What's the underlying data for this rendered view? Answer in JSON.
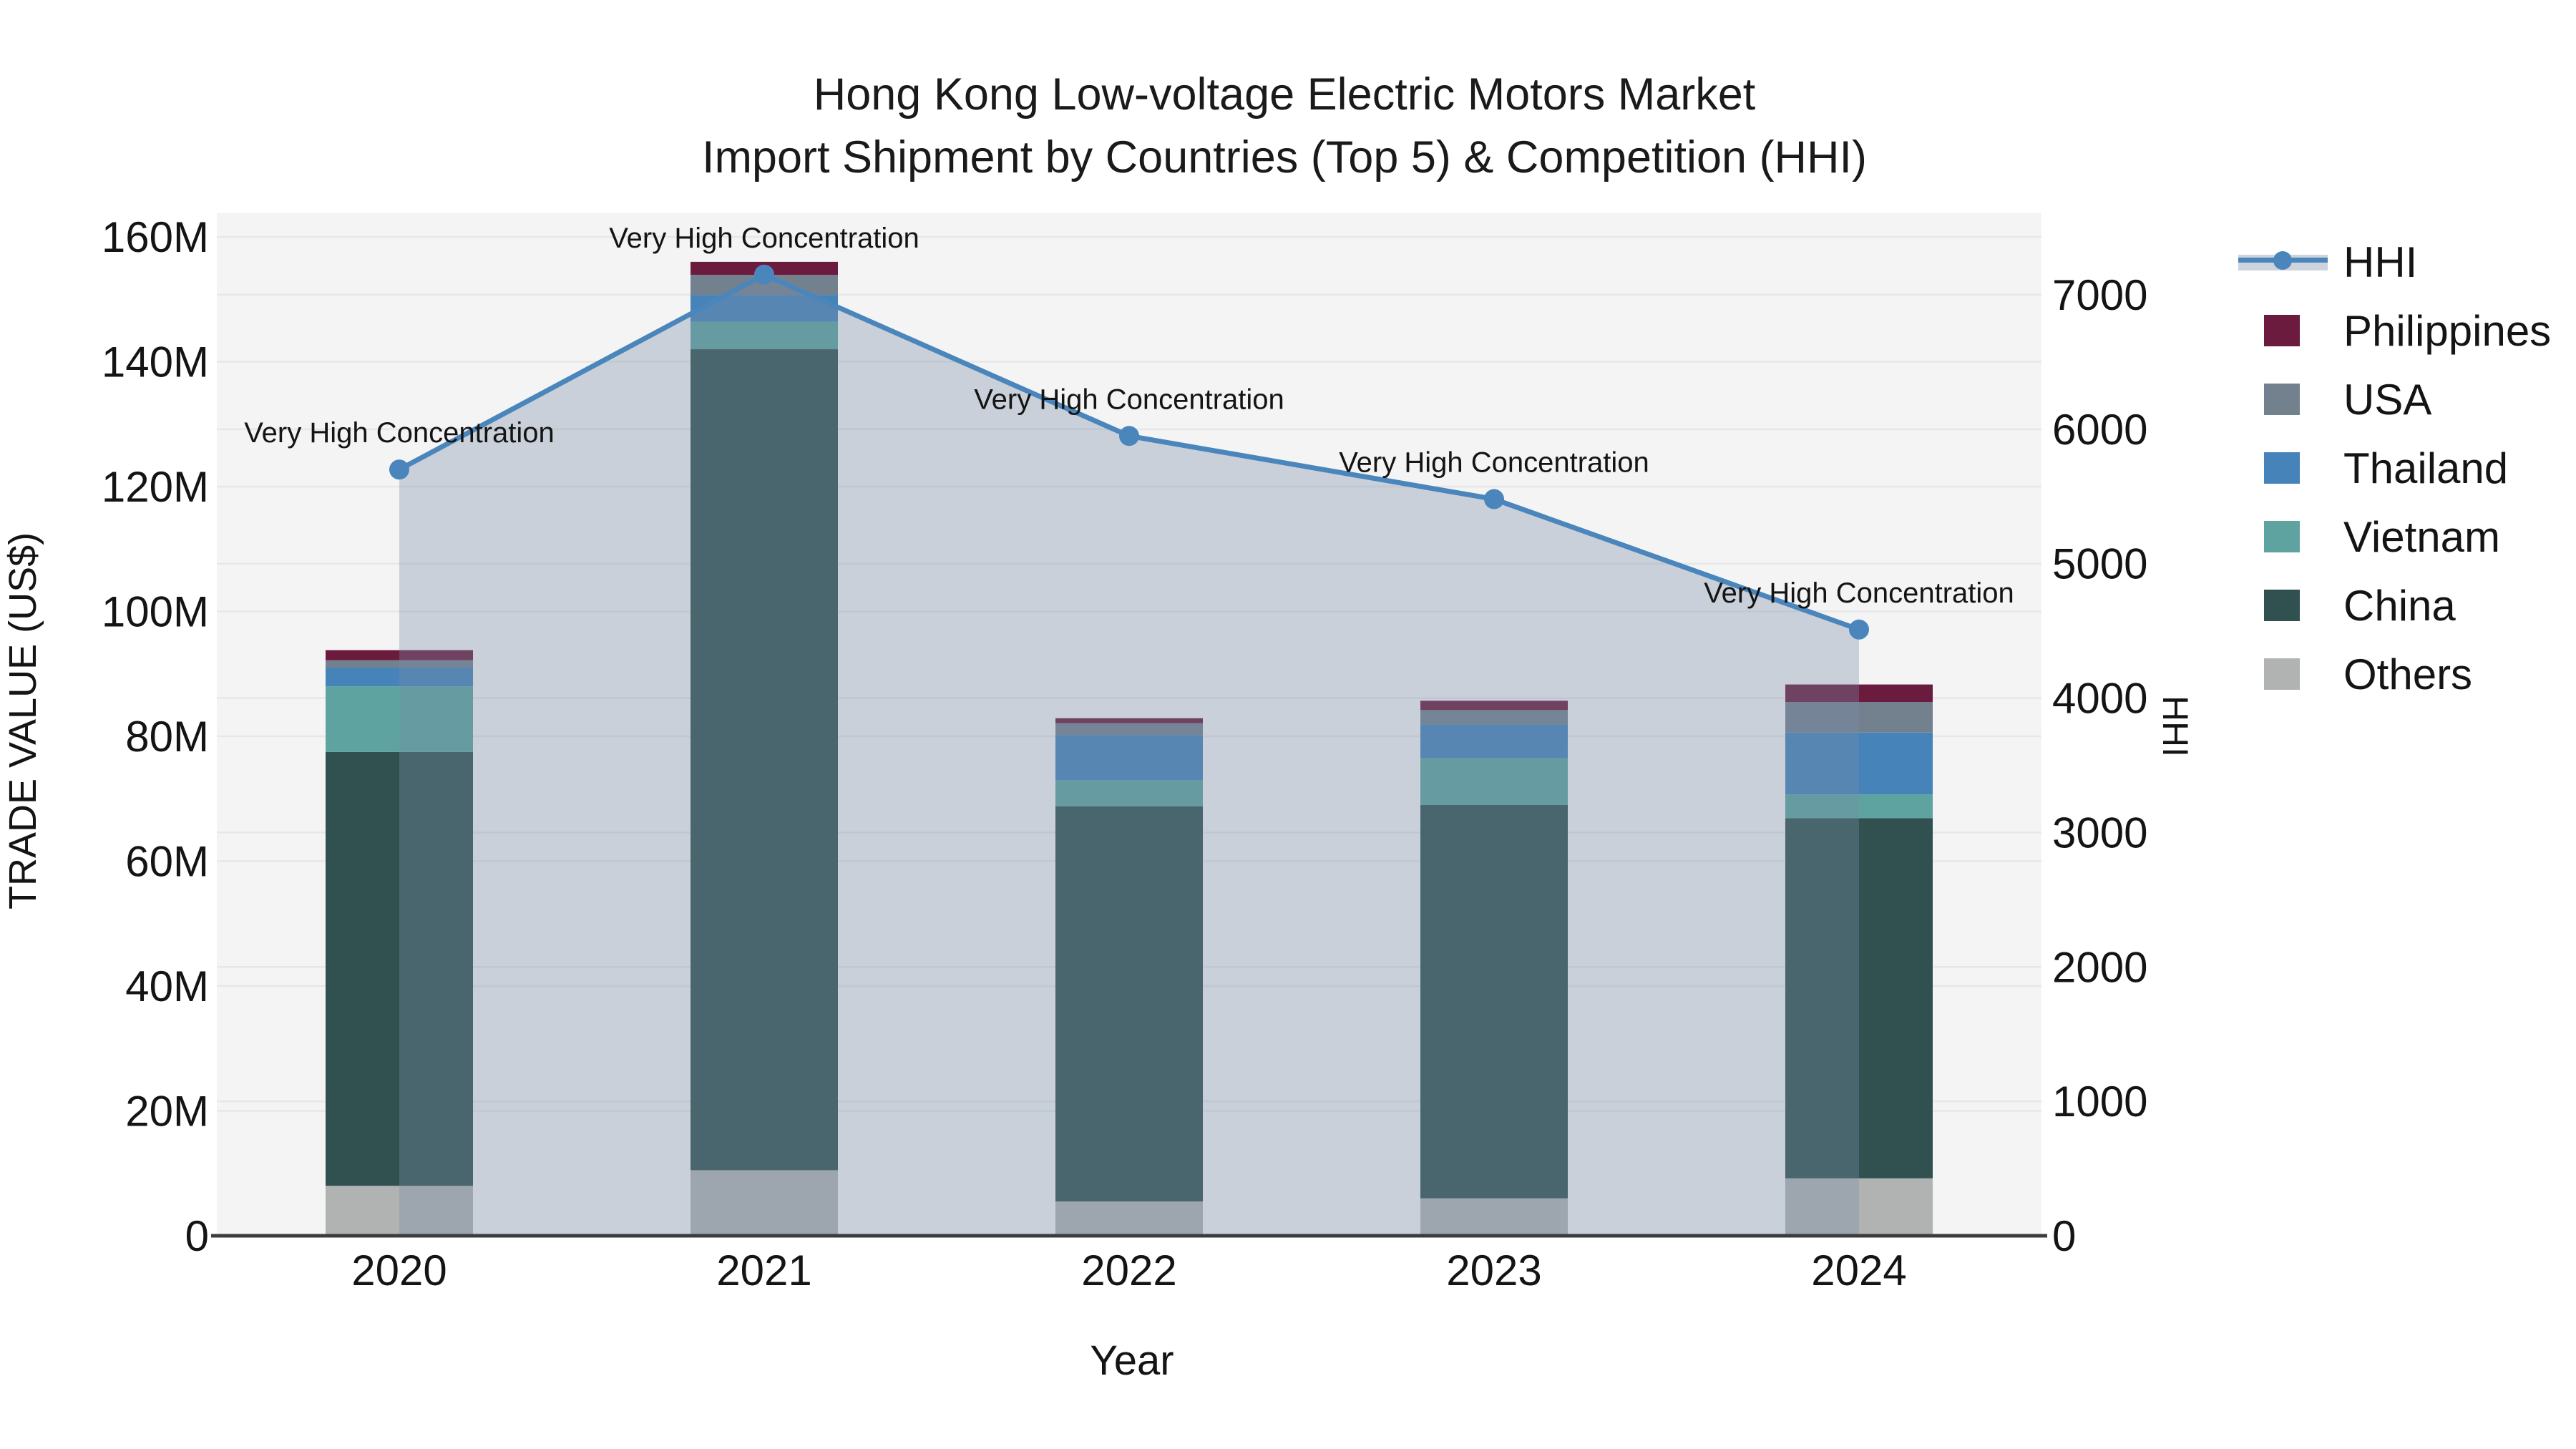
{
  "title": {
    "line1": "Hong Kong Low-voltage Electric Motors Market",
    "line2": "Import Shipment by Countries (Top 5) & Competition (HHI)"
  },
  "axes": {
    "y_left_label": "TRADE VALUE (US$)",
    "y_right_label": "HHI",
    "x_label": "Year"
  },
  "legend": {
    "items": [
      {
        "label": "HHI",
        "type": "line",
        "color": "#4a86bb"
      },
      {
        "label": "Philippines",
        "type": "patch",
        "color": "#6b1b3e"
      },
      {
        "label": "USA",
        "type": "patch",
        "color": "#73818f"
      },
      {
        "label": "Thailand",
        "type": "patch",
        "color": "#4583b8"
      },
      {
        "label": "Vietnam",
        "type": "patch",
        "color": "#5ea3a0"
      },
      {
        "label": "China",
        "type": "patch",
        "color": "#305150"
      },
      {
        "label": "Others",
        "type": "patch",
        "color": "#b1b3b3"
      }
    ]
  },
  "chart_data": {
    "type": "bar",
    "subtype": "stacked-bars-with-line",
    "title": "Hong Kong Low-voltage Electric Motors Market — Import Shipment by Countries (Top 5) & Competition (HHI)",
    "categories": [
      "2020",
      "2021",
      "2022",
      "2023",
      "2024"
    ],
    "bar_unit": "million US$",
    "bar_series_bottom_to_top": [
      {
        "name": "Others",
        "color": "#b1b3b3",
        "values": [
          8.0,
          10.5,
          5.5,
          6.0,
          9.2
        ]
      },
      {
        "name": "China",
        "color": "#305150",
        "values": [
          69.5,
          131.5,
          63.3,
          63.0,
          57.7
        ]
      },
      {
        "name": "Vietnam",
        "color": "#5ea3a0",
        "values": [
          10.5,
          4.4,
          4.2,
          7.5,
          3.8
        ]
      },
      {
        "name": "Thailand",
        "color": "#4583b8",
        "values": [
          3.0,
          4.3,
          7.2,
          5.4,
          9.9
        ]
      },
      {
        "name": "USA",
        "color": "#73818f",
        "values": [
          1.2,
          3.2,
          1.9,
          2.3,
          4.9
        ]
      },
      {
        "name": "Philippines",
        "color": "#6b1b3e",
        "values": [
          1.6,
          2.1,
          0.8,
          1.5,
          2.8
        ]
      }
    ],
    "line_series": {
      "name": "HHI",
      "color": "#4a86bb",
      "fill_color": "rgba(120,140,165,0.35)",
      "values": [
        5700,
        7150,
        5950,
        5480,
        4510
      ]
    },
    "annotations": [
      "Very High Concentration",
      "Very High Concentration",
      "Very High Concentration",
      "Very High Concentration",
      "Very High Concentration"
    ],
    "y_left": {
      "label": "TRADE VALUE (US$)",
      "min": 0,
      "max": 160000000,
      "tick_step": 20000000,
      "tick_labels": [
        "0",
        "20M",
        "40M",
        "60M",
        "80M",
        "100M",
        "120M",
        "140M",
        "160M"
      ]
    },
    "y_right": {
      "label": "HHI",
      "min": 0,
      "max": 7000,
      "tick_step": 1000,
      "tick_labels": [
        "0",
        "1000",
        "2000",
        "3000",
        "4000",
        "5000",
        "6000",
        "7000"
      ]
    },
    "xlabel": "Year",
    "grid": true,
    "legend_position": "right",
    "plot_background": "#f4f4f4",
    "grid_color": "#e7e7e7",
    "axis_line_color": "#3c3c3c"
  }
}
